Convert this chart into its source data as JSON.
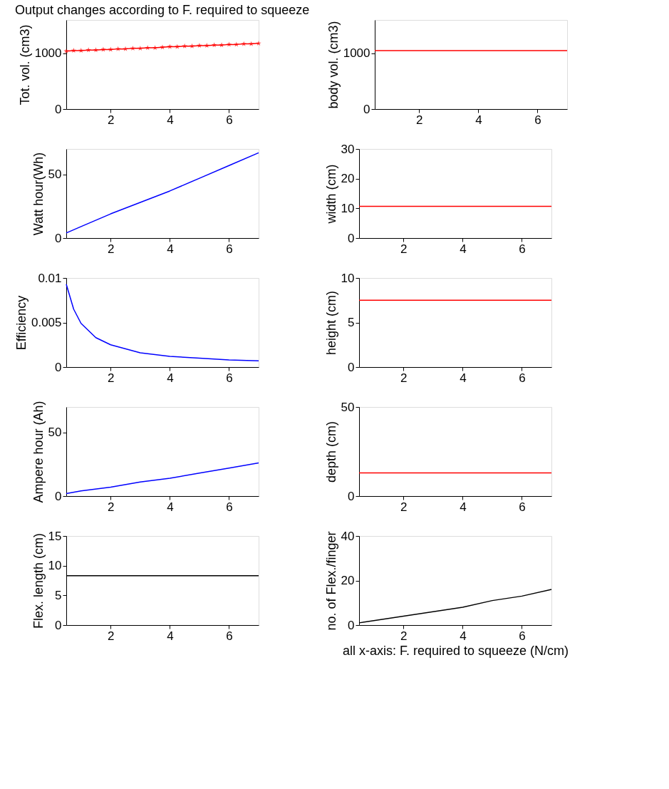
{
  "chart_data": [
    {
      "type": "line",
      "title": "Output changes according to F. required to squeeze",
      "ylabel": "Tot. vol. (cm3)",
      "xlim": [
        0.5,
        7
      ],
      "xticks": [
        2,
        4,
        6
      ],
      "ylim": [
        0,
        1600
      ],
      "yticks": [
        0,
        1000
      ],
      "marker": "star",
      "x": [
        0.5,
        0.75,
        1,
        1.25,
        1.5,
        1.75,
        2,
        2.25,
        2.5,
        2.75,
        3,
        3.25,
        3.5,
        3.75,
        4,
        4.25,
        4.5,
        4.75,
        5,
        5.25,
        5.5,
        5.75,
        6,
        6.25,
        6.5,
        6.75,
        7
      ],
      "series": [
        {
          "color": "#ff0000",
          "values": [
            1040,
            1050,
            1050,
            1060,
            1060,
            1070,
            1070,
            1080,
            1080,
            1090,
            1090,
            1100,
            1100,
            1110,
            1120,
            1120,
            1130,
            1130,
            1140,
            1140,
            1150,
            1150,
            1160,
            1160,
            1170,
            1170,
            1180
          ]
        }
      ]
    },
    {
      "type": "line",
      "ylabel": "body vol. (cm3)",
      "xlim": [
        0.5,
        7
      ],
      "xticks": [
        2,
        4,
        6
      ],
      "ylim": [
        0,
        1600
      ],
      "yticks": [
        0,
        1000
      ],
      "x": [
        0.5,
        7
      ],
      "series": [
        {
          "color": "#ff0000",
          "values": [
            1050,
            1050
          ]
        }
      ]
    },
    {
      "type": "line",
      "ylabel": "Watt hour(Wh)",
      "xlim": [
        0.5,
        7
      ],
      "xticks": [
        2,
        4,
        6
      ],
      "ylim": [
        0,
        70
      ],
      "yticks": [
        0,
        50
      ],
      "x": [
        0.5,
        1,
        2,
        3,
        4,
        5,
        6,
        7
      ],
      "series": [
        {
          "color": "#0000ff",
          "values": [
            4,
            9,
            19,
            28,
            37,
            47,
            57,
            67
          ]
        }
      ]
    },
    {
      "type": "line",
      "ylabel": "width (cm)",
      "xlim": [
        0.5,
        7
      ],
      "xticks": [
        2,
        4,
        6
      ],
      "ylim": [
        0,
        30
      ],
      "yticks": [
        0,
        10,
        20,
        30
      ],
      "x": [
        0.5,
        7
      ],
      "series": [
        {
          "color": "#ff0000",
          "values": [
            10.7,
            10.7
          ]
        }
      ]
    },
    {
      "type": "line",
      "ylabel": "Efficiency",
      "xlim": [
        0.5,
        7
      ],
      "xticks": [
        2,
        4,
        6
      ],
      "ylim": [
        0,
        0.01
      ],
      "yticks": [
        0,
        0.005,
        0.01
      ],
      "x": [
        0.5,
        0.75,
        1,
        1.5,
        2,
        3,
        4,
        5,
        6,
        7
      ],
      "series": [
        {
          "color": "#0000ff",
          "values": [
            0.0093,
            0.0065,
            0.0049,
            0.0033,
            0.0025,
            0.0016,
            0.0012,
            0.001,
            0.0008,
            0.0007
          ]
        }
      ]
    },
    {
      "type": "line",
      "ylabel": "height (cm)",
      "xlim": [
        0.5,
        7
      ],
      "xticks": [
        2,
        4,
        6
      ],
      "ylim": [
        0,
        10
      ],
      "yticks": [
        0,
        5,
        10
      ],
      "x": [
        0.5,
        7
      ],
      "series": [
        {
          "color": "#ff0000",
          "values": [
            7.5,
            7.5
          ]
        }
      ]
    },
    {
      "type": "line",
      "ylabel": "Ampere hour (Ah)",
      "xlim": [
        0.5,
        7
      ],
      "xticks": [
        2,
        4,
        6
      ],
      "ylim": [
        0,
        70
      ],
      "yticks": [
        0,
        50
      ],
      "x": [
        0.5,
        1,
        2,
        3,
        4,
        5,
        6,
        7
      ],
      "series": [
        {
          "color": "#0000ff",
          "values": [
            2,
            4,
            7,
            11,
            14,
            18,
            22,
            26
          ]
        }
      ]
    },
    {
      "type": "line",
      "ylabel": "depth (cm)",
      "xlim": [
        0.5,
        7
      ],
      "xticks": [
        2,
        4,
        6
      ],
      "ylim": [
        0,
        50
      ],
      "yticks": [
        0,
        50
      ],
      "x": [
        0.5,
        7
      ],
      "series": [
        {
          "color": "#ff0000",
          "values": [
            13,
            13
          ]
        }
      ]
    },
    {
      "type": "line",
      "ylabel": "Flex. length (cm)",
      "xlim": [
        0.5,
        7
      ],
      "xticks": [
        2,
        4,
        6
      ],
      "ylim": [
        0,
        15
      ],
      "yticks": [
        0,
        5,
        10,
        15
      ],
      "x": [
        0.5,
        7
      ],
      "series": [
        {
          "color": "#000000",
          "values": [
            8.3,
            8.3
          ]
        }
      ]
    },
    {
      "type": "line",
      "ylabel": "no. of Flex./finger",
      "xlabel": "all x-axis: F. required to squeeze (N/cm)",
      "xlim": [
        0.5,
        7
      ],
      "xticks": [
        2,
        4,
        6
      ],
      "ylim": [
        0,
        40
      ],
      "yticks": [
        0,
        20,
        40
      ],
      "x": [
        0.5,
        1,
        2,
        3,
        4,
        5,
        6,
        7
      ],
      "series": [
        {
          "color": "#000000",
          "values": [
            1,
            2,
            4,
            6,
            8,
            11,
            13,
            16
          ]
        }
      ]
    }
  ]
}
